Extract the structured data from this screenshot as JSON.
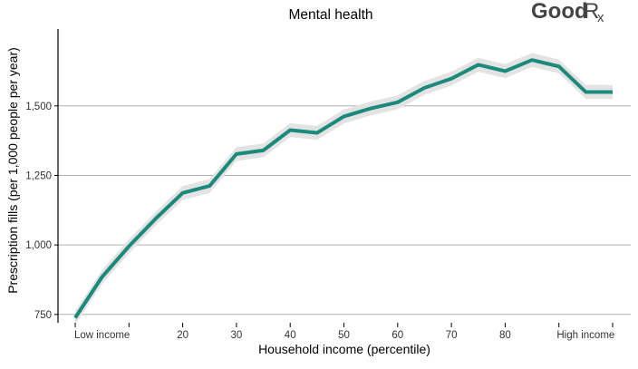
{
  "brand": {
    "name_bold": "Good",
    "name_rx": "R",
    "name_x": "x"
  },
  "colors": {
    "line": "#1b8a7c",
    "band": "#e3e3e3",
    "grid": "#b0b0b0",
    "axis": "#000000",
    "text": "#333333"
  },
  "chart_data": {
    "type": "line",
    "title": "Mental health",
    "xlabel": "Household income (percentile)",
    "ylabel": "Prescription fills (per 1,000 people per year)",
    "xlim": [
      0,
      100
    ],
    "ylim": [
      720,
      1770
    ],
    "y_ticks": [
      750,
      1000,
      1250,
      1500
    ],
    "y_tick_labels": [
      "750",
      "1,000",
      "1,250",
      "1,500"
    ],
    "grid": "horizontal major",
    "x_ticks": [
      0,
      10,
      20,
      30,
      40,
      50,
      60,
      70,
      80,
      90,
      100
    ],
    "x_tick_labels": [
      {
        "x": 5,
        "label": "Low income"
      },
      {
        "x": 20,
        "label": "20"
      },
      {
        "x": 30,
        "label": "30"
      },
      {
        "x": 40,
        "label": "40"
      },
      {
        "x": 50,
        "label": "50"
      },
      {
        "x": 60,
        "label": "60"
      },
      {
        "x": 70,
        "label": "70"
      },
      {
        "x": 80,
        "label": "80"
      },
      {
        "x": 95,
        "label": "High income"
      }
    ],
    "series": [
      {
        "x": [
          0,
          5,
          10,
          15,
          20,
          25,
          30,
          35,
          40,
          45,
          50,
          55,
          60,
          65,
          70,
          75,
          80,
          85,
          90,
          95,
          100
        ],
        "values": [
          738,
          885,
          995,
          1095,
          1187,
          1212,
          1327,
          1340,
          1413,
          1403,
          1462,
          1491,
          1513,
          1565,
          1598,
          1648,
          1625,
          1665,
          1642,
          1550,
          1550
        ],
        "band_halfwidth": 25
      }
    ]
  }
}
